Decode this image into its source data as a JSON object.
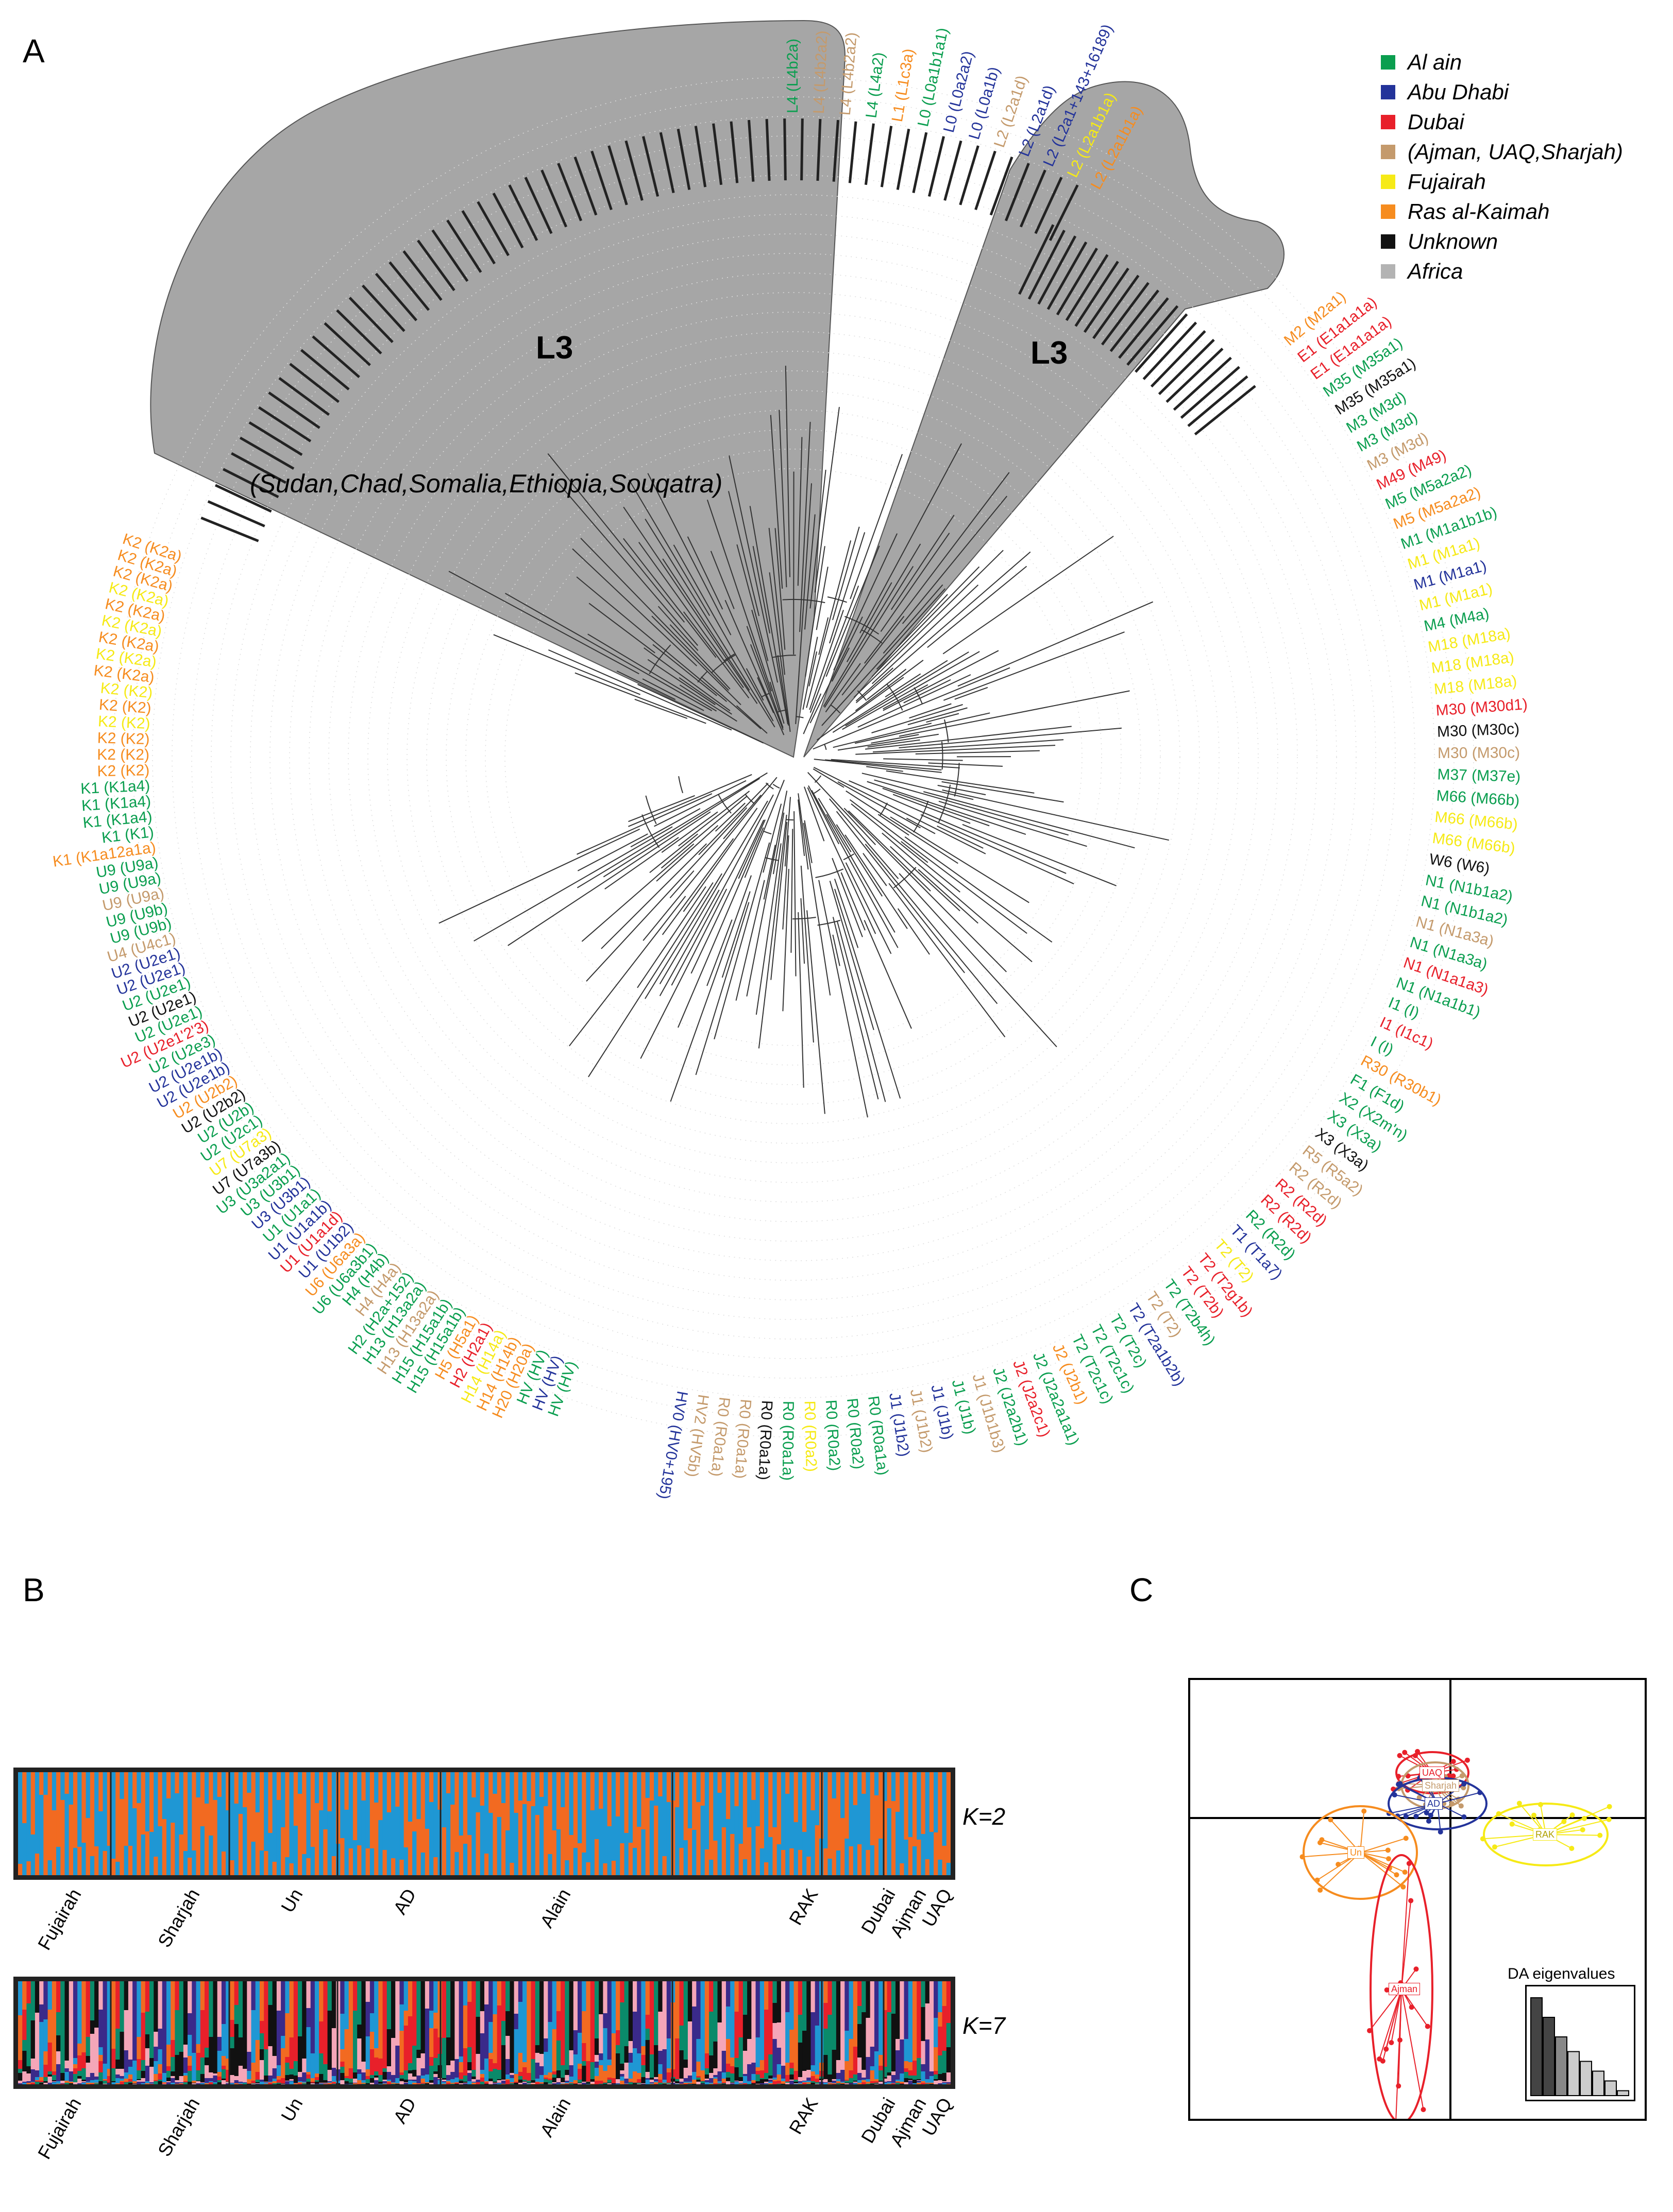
{
  "panels": {
    "a": "A",
    "b": "B",
    "c": "C"
  },
  "legend": [
    {
      "label": "Al ain",
      "color": "#0a9e4f"
    },
    {
      "label": "Abu Dhabi",
      "color": "#23339a"
    },
    {
      "label": "Dubai",
      "color": "#e8202a"
    },
    {
      "label": "(Ajman, UAQ,Sharjah)",
      "color": "#c49a6c"
    },
    {
      "label": "Fujairah",
      "color": "#f6ea16"
    },
    {
      "label": "Ras al-Kaimah",
      "color": "#f68c1f"
    },
    {
      "label": "Unknown",
      "color": "#111111"
    },
    {
      "label": "Africa",
      "color": "#b3b3b3"
    }
  ],
  "tree": {
    "clade_left": "L3",
    "clade_right": "L3",
    "africa_note": "(Sudan,Chad,Somalia,Ethiopia,Souqatra)",
    "shade_color": "#a6a6a6",
    "labels_right": [
      {
        "t": "M2 (M2a1)",
        "c": "#f68c1f"
      },
      {
        "t": "E1 (E1a1a1a)",
        "c": "#e8202a"
      },
      {
        "t": "E1 (E1a1a1a)",
        "c": "#e8202a"
      },
      {
        "t": "M35 (M35a1)",
        "c": "#0a9e4f"
      },
      {
        "t": "M35 (M35a1)",
        "c": "#111111"
      },
      {
        "t": "M3 (M3d)",
        "c": "#0a9e4f"
      },
      {
        "t": "M3 (M3d)",
        "c": "#0a9e4f"
      },
      {
        "t": "M3 (M3d)",
        "c": "#c49a6c"
      },
      {
        "t": "M49 (M49)",
        "c": "#e8202a"
      },
      {
        "t": "M5 (M5a2a2)",
        "c": "#0a9e4f"
      },
      {
        "t": "M5 (M5a2a2)",
        "c": "#f68c1f"
      },
      {
        "t": "M1 (M1a1b1b)",
        "c": "#0a9e4f"
      },
      {
        "t": "M1 (M1a1)",
        "c": "#f6ea16"
      },
      {
        "t": "M1 (M1a1)",
        "c": "#23339a"
      },
      {
        "t": "M1 (M1a1)",
        "c": "#f6ea16"
      },
      {
        "t": "M4 (M4a)",
        "c": "#0a9e4f"
      },
      {
        "t": "M18 (M18a)",
        "c": "#f6ea16"
      },
      {
        "t": "M18 (M18a)",
        "c": "#f6ea16"
      },
      {
        "t": "M18 (M18a)",
        "c": "#f6ea16"
      },
      {
        "t": "M30 (M30d1)",
        "c": "#e8202a"
      },
      {
        "t": "M30 (M30c)",
        "c": "#111111"
      },
      {
        "t": "M30 (M30c)",
        "c": "#c49a6c"
      },
      {
        "t": "M37 (M37e)",
        "c": "#0a9e4f"
      },
      {
        "t": "M66 (M66b)",
        "c": "#0a9e4f"
      },
      {
        "t": "M66 (M66b)",
        "c": "#f6ea16"
      },
      {
        "t": "M66 (M66b)",
        "c": "#f6ea16"
      },
      {
        "t": "W6 (W6)",
        "c": "#111111"
      },
      {
        "t": "N1 (N1b1a2)",
        "c": "#0a9e4f"
      },
      {
        "t": "N1 (N1b1a2)",
        "c": "#0a9e4f"
      },
      {
        "t": "N1 (N1a3a)",
        "c": "#c49a6c"
      },
      {
        "t": "N1 (N1a3a)",
        "c": "#0a9e4f"
      },
      {
        "t": "N1 (N1a1a3)",
        "c": "#e8202a"
      },
      {
        "t": "N1 (N1a1b1)",
        "c": "#0a9e4f"
      },
      {
        "t": "I1 (I)",
        "c": "#0a9e4f"
      },
      {
        "t": "I1 (I1c1)",
        "c": "#e8202a"
      },
      {
        "t": "I (I)",
        "c": "#0a9e4f"
      },
      {
        "t": "R30 (R30b1)",
        "c": "#f68c1f"
      },
      {
        "t": "F1 (F1d)",
        "c": "#0a9e4f"
      },
      {
        "t": "X2 (X2m'n)",
        "c": "#0a9e4f"
      },
      {
        "t": "X3 (X3a)",
        "c": "#0a9e4f"
      },
      {
        "t": "X3 (X3a)",
        "c": "#111111"
      },
      {
        "t": "R5 (R5a2)",
        "c": "#c49a6c"
      },
      {
        "t": "R2 (R2d)",
        "c": "#c49a6c"
      },
      {
        "t": "R2 (R2d)",
        "c": "#e8202a"
      },
      {
        "t": "R2 (R2d)",
        "c": "#e8202a"
      },
      {
        "t": "R2 (R2d)",
        "c": "#0a9e4f"
      },
      {
        "t": "T1 (T1a7)",
        "c": "#23339a"
      },
      {
        "t": "T2 (T2)",
        "c": "#f6ea16"
      },
      {
        "t": "T2 (T2g1b)",
        "c": "#e8202a"
      },
      {
        "t": "T2 (T2b)",
        "c": "#e8202a"
      },
      {
        "t": "T2 (T2b4h)",
        "c": "#0a9e4f"
      },
      {
        "t": "T2 (T2)",
        "c": "#c49a6c"
      },
      {
        "t": "T2 (T2a1b2b)",
        "c": "#23339a"
      },
      {
        "t": "T2 (T2c)",
        "c": "#0a9e4f"
      },
      {
        "t": "T2 (T2c1c)",
        "c": "#0a9e4f"
      },
      {
        "t": "T2 (T2c1c)",
        "c": "#0a9e4f"
      },
      {
        "t": "J2 (J2b1)",
        "c": "#f68c1f"
      },
      {
        "t": "J2 (J2a2a1a1)",
        "c": "#0a9e4f"
      },
      {
        "t": "J2 (J2a2c1)",
        "c": "#e8202a"
      },
      {
        "t": "J2 (J2a2b1)",
        "c": "#0a9e4f"
      },
      {
        "t": "J1 (J1b1b3)",
        "c": "#c49a6c"
      },
      {
        "t": "J1 (J1b)",
        "c": "#0a9e4f"
      },
      {
        "t": "J1 (J1b)",
        "c": "#23339a"
      },
      {
        "t": "J1 (J1b2)",
        "c": "#c49a6c"
      },
      {
        "t": "J1 (J1b2)",
        "c": "#23339a"
      },
      {
        "t": "R0 (R0a1a)",
        "c": "#0a9e4f"
      },
      {
        "t": "R0 (R0a2)",
        "c": "#0a9e4f"
      },
      {
        "t": "R0 (R0a2)",
        "c": "#0a9e4f"
      },
      {
        "t": "R0 (R0a2)",
        "c": "#f6ea16"
      },
      {
        "t": "R0 (R0a1a)",
        "c": "#0a9e4f"
      },
      {
        "t": "R0 (R0a1a)",
        "c": "#111111"
      },
      {
        "t": "R0 (R0a1a)",
        "c": "#c49a6c"
      },
      {
        "t": "R0 (R0a1a)",
        "c": "#c49a6c"
      },
      {
        "t": "HV2 (HV5b)",
        "c": "#c49a6c"
      },
      {
        "t": "HV0 (HV0+195)",
        "c": "#23339a"
      }
    ],
    "labels_left": [
      {
        "t": "K2 (K2a)",
        "c": "#f68c1f"
      },
      {
        "t": "K2 (K2a)",
        "c": "#f68c1f"
      },
      {
        "t": "K2 (K2a)",
        "c": "#f68c1f"
      },
      {
        "t": "K2 (K2a)",
        "c": "#f6ea16"
      },
      {
        "t": "K2 (K2a)",
        "c": "#f68c1f"
      },
      {
        "t": "K2 (K2a)",
        "c": "#f6ea16"
      },
      {
        "t": "K2 (K2a)",
        "c": "#f68c1f"
      },
      {
        "t": "K2 (K2a)",
        "c": "#f6ea16"
      },
      {
        "t": "K2 (K2a)",
        "c": "#f68c1f"
      },
      {
        "t": "K2 (K2)",
        "c": "#f6ea16"
      },
      {
        "t": "K2 (K2)",
        "c": "#f68c1f"
      },
      {
        "t": "K2 (K2)",
        "c": "#f6ea16"
      },
      {
        "t": "K2 (K2)",
        "c": "#f68c1f"
      },
      {
        "t": "K2 (K2)",
        "c": "#f68c1f"
      },
      {
        "t": "K2 (K2)",
        "c": "#f68c1f"
      },
      {
        "t": "K1 (K1a4)",
        "c": "#0a9e4f"
      },
      {
        "t": "K1 (K1a4)",
        "c": "#0a9e4f"
      },
      {
        "t": "K1 (K1a4)",
        "c": "#0a9e4f"
      },
      {
        "t": "K1 (K1)",
        "c": "#0a9e4f"
      },
      {
        "t": "K1 (K1a12a1a)",
        "c": "#f68c1f"
      },
      {
        "t": "U9 (U9a)",
        "c": "#0a9e4f"
      },
      {
        "t": "U9 (U9a)",
        "c": "#0a9e4f"
      },
      {
        "t": "U9 (U9a)",
        "c": "#c49a6c"
      },
      {
        "t": "U9 (U9b)",
        "c": "#0a9e4f"
      },
      {
        "t": "U9 (U9b)",
        "c": "#0a9e4f"
      },
      {
        "t": "U4 (U4c1)",
        "c": "#c49a6c"
      },
      {
        "t": "U2 (U2e1)",
        "c": "#23339a"
      },
      {
        "t": "U2 (U2e1)",
        "c": "#23339a"
      },
      {
        "t": "U2 (U2e1)",
        "c": "#0a9e4f"
      },
      {
        "t": "U2 (U2e1)",
        "c": "#111111"
      },
      {
        "t": "U2 (U2e1)",
        "c": "#0a9e4f"
      },
      {
        "t": "U2 (U2e1'2'3)",
        "c": "#e8202a"
      },
      {
        "t": "U2 (U2e3)",
        "c": "#0a9e4f"
      },
      {
        "t": "U2 (U2e1b)",
        "c": "#23339a"
      },
      {
        "t": "U2 (U2e1b)",
        "c": "#23339a"
      },
      {
        "t": "U2 (U2b2)",
        "c": "#f68c1f"
      },
      {
        "t": "U2 (U2b2)",
        "c": "#111111"
      },
      {
        "t": "U2 (U2b)",
        "c": "#0a9e4f"
      },
      {
        "t": "U2 (U2c1)",
        "c": "#0a9e4f"
      },
      {
        "t": "U7 (U7a3)",
        "c": "#f6ea16"
      },
      {
        "t": "U7 (U7a3b)",
        "c": "#111111"
      },
      {
        "t": "U3 (U3a2a1)",
        "c": "#0a9e4f"
      },
      {
        "t": "U3 (U3b1)",
        "c": "#0a9e4f"
      },
      {
        "t": "U3 (U3b1)",
        "c": "#23339a"
      },
      {
        "t": "U1 (U1a1)",
        "c": "#0a9e4f"
      },
      {
        "t": "U1 (U1a1b)",
        "c": "#23339a"
      },
      {
        "t": "U1 (U1a1d)",
        "c": "#e8202a"
      },
      {
        "t": "U1 (U1b2)",
        "c": "#23339a"
      },
      {
        "t": "U6 (U6a3a)",
        "c": "#f68c1f"
      },
      {
        "t": "U6 (U6a3b1)",
        "c": "#0a9e4f"
      },
      {
        "t": "H4 (H4b)",
        "c": "#0a9e4f"
      },
      {
        "t": "H4 (H4a)",
        "c": "#c49a6c"
      },
      {
        "t": "H2 (H2a+152)",
        "c": "#0a9e4f"
      },
      {
        "t": "H13 (H13a2a)",
        "c": "#0a9e4f"
      },
      {
        "t": "H13 (H13a2a)",
        "c": "#c49a6c"
      },
      {
        "t": "H15 (H15a1b)",
        "c": "#0a9e4f"
      },
      {
        "t": "H15 (H15a1b)",
        "c": "#0a9e4f"
      },
      {
        "t": "H5 (H5a1)",
        "c": "#f68c1f"
      },
      {
        "t": "H2 (H2a1)",
        "c": "#e8202a"
      },
      {
        "t": "H14 (H14a)",
        "c": "#f6ea16"
      },
      {
        "t": "H14 (H14b)",
        "c": "#f68c1f"
      },
      {
        "t": "H20 (H20a)",
        "c": "#f68c1f"
      },
      {
        "t": "HV (HV)",
        "c": "#0a9e4f"
      },
      {
        "t": "HV (HV)",
        "c": "#23339a"
      },
      {
        "t": "HV (HV)",
        "c": "#0a9e4f"
      }
    ],
    "labels_top": [
      {
        "t": "L4 (L4b2a)",
        "c": "#0a9e4f"
      },
      {
        "t": "L4 (L4b2a2)",
        "c": "#c49a6c"
      },
      {
        "t": "L4 (L4b2a2)",
        "c": "#c49a6c"
      },
      {
        "t": "L4 (L4a2)",
        "c": "#0a9e4f"
      },
      {
        "t": "L1 (L1c3a)",
        "c": "#f68c1f"
      },
      {
        "t": "L0 (L0a1b1a1)",
        "c": "#0a9e4f"
      },
      {
        "t": "L0 (L0a2a2)",
        "c": "#23339a"
      },
      {
        "t": "L0 (L0a1b)",
        "c": "#23339a"
      },
      {
        "t": "L2 (L2a1d)",
        "c": "#c49a6c"
      },
      {
        "t": "L2 (L2a1d)",
        "c": "#23339a"
      },
      {
        "t": "L2 (L2a1+143+16189)",
        "c": "#23339a"
      },
      {
        "t": "L2 (L2a1b1a)",
        "c": "#f6ea16"
      },
      {
        "t": "L2 (L2a1b1a)",
        "c": "#f68c1f"
      }
    ]
  },
  "structure": {
    "k2_label": "K=2",
    "k7_label": "K=7",
    "populations": [
      "Fujairah",
      "Sharjah",
      "Un",
      "AD",
      "Alain",
      "RAK",
      "Dubai",
      "Ajman",
      "UAQ"
    ],
    "k2_colors": [
      "#1f97d4",
      "#f26a21"
    ],
    "k7_colors": [
      "#1f97d4",
      "#f26a21",
      "#e8202a",
      "#0a8a6a",
      "#111111",
      "#f4a6b8",
      "#3a2a8a"
    ]
  },
  "dapc": {
    "groups": [
      {
        "label": "UAQ",
        "color": "#e8202a"
      },
      {
        "label": "Sharjah",
        "color": "#c49a6c"
      },
      {
        "label": "AD",
        "color": "#23339a"
      },
      {
        "label": "RAK",
        "color": "#f6ea16"
      },
      {
        "label": "Un",
        "color": "#f68c1f"
      },
      {
        "label": "Ajman",
        "color": "#e8202a"
      }
    ],
    "eigen_title": "DA eigenvalues",
    "eigenvalues": [
      1.0,
      0.8,
      0.6,
      0.45,
      0.35,
      0.25,
      0.15,
      0.05
    ]
  }
}
